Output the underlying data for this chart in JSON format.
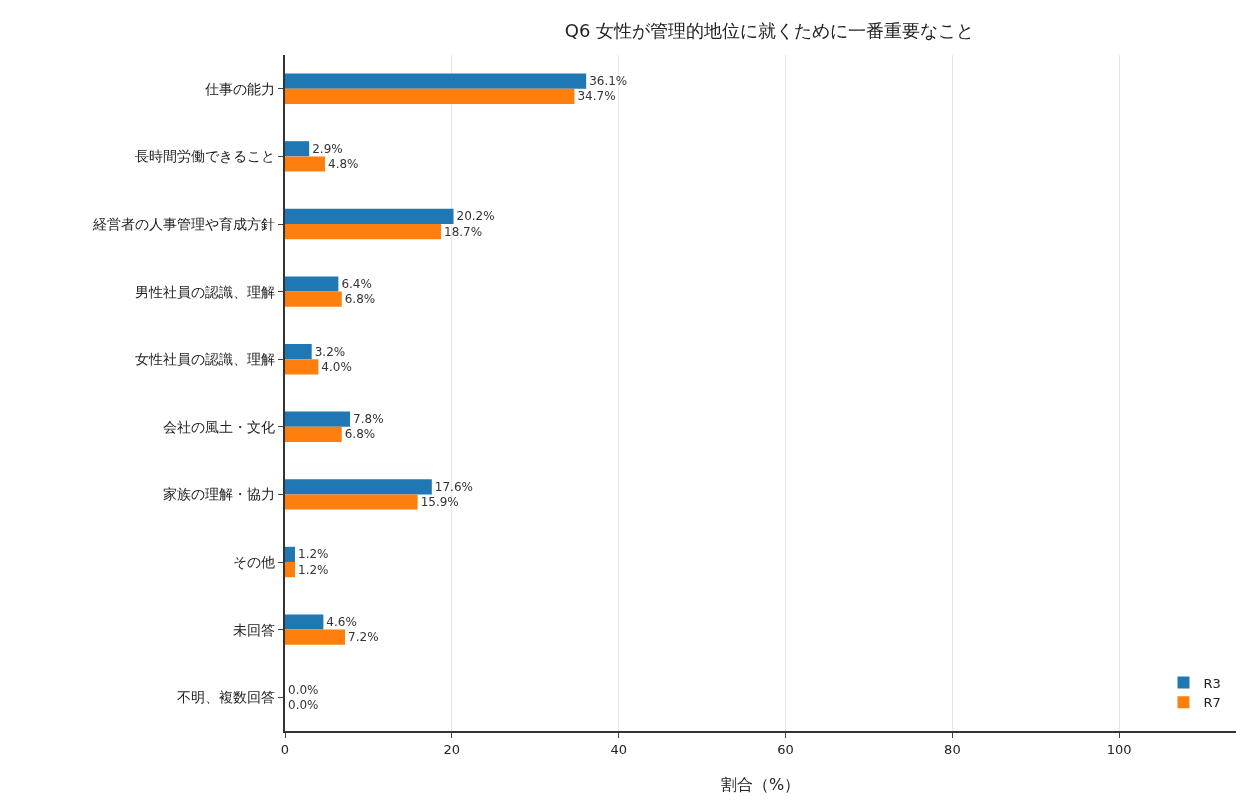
{
  "chart_data": {
    "type": "bar",
    "orientation": "horizontal",
    "title": "Q6 女性が管理的地位に就くために一番重要なこと",
    "xlabel": "割合（%）",
    "categories": [
      "仕事の能力",
      "長時間労働できること",
      "経営者の人事管理や育成方針",
      "男性社員の認識、理解",
      "女性社員の認識、理解",
      "会社の風土・文化",
      "家族の理解・協力",
      "その他",
      "未回答",
      "不明、複数回答"
    ],
    "series": [
      {
        "name": "R3",
        "color": "#1f77b4",
        "values": [
          36.1,
          2.9,
          20.2,
          6.4,
          3.2,
          7.8,
          17.6,
          1.2,
          4.6,
          0.0
        ],
        "value_labels": [
          "36.1%",
          "2.9%",
          "20.2%",
          "6.4%",
          "3.2%",
          "7.8%",
          "17.6%",
          "1.2%",
          "4.6%",
          "0.0%"
        ]
      },
      {
        "name": "R7",
        "color": "#ff7f0e",
        "values": [
          34.7,
          4.8,
          18.7,
          6.8,
          4.0,
          6.8,
          15.9,
          1.2,
          7.2,
          0.0
        ],
        "value_labels": [
          "34.7%",
          "4.8%",
          "18.7%",
          "6.8%",
          "4.0%",
          "6.8%",
          "15.9%",
          "1.2%",
          "7.2%",
          "0.0%"
        ]
      }
    ],
    "xlim": [
      0,
      114
    ],
    "xticks": [
      0,
      20,
      40,
      60,
      80,
      100
    ],
    "grid": "x",
    "legend": "bottom right"
  }
}
